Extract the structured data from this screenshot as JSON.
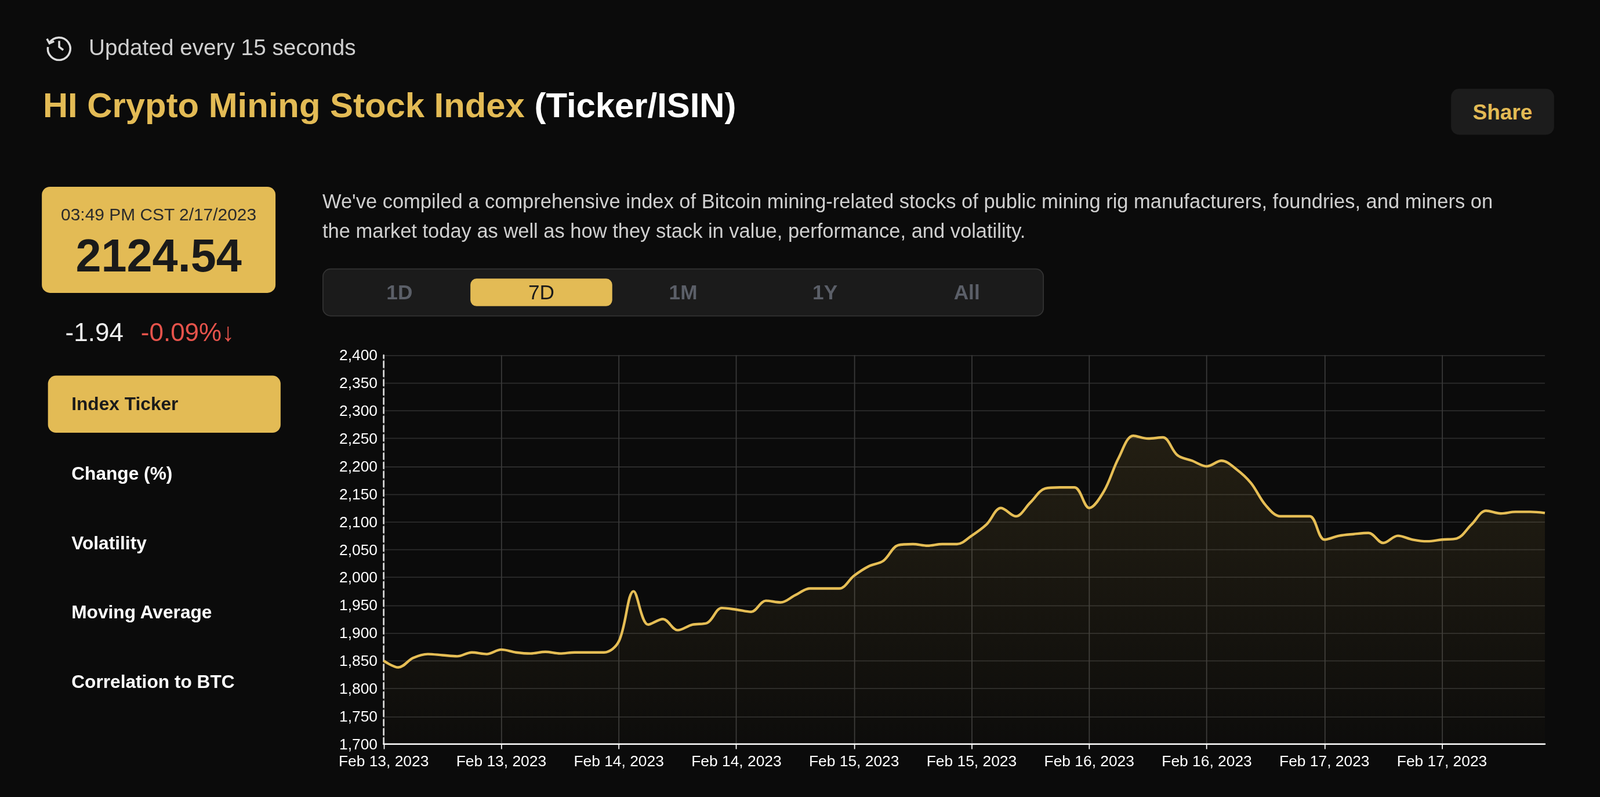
{
  "header": {
    "update_note": "Updated every 15 seconds",
    "title": "HI Crypto Mining Stock Index",
    "title_suffix": "(Ticker/ISIN)",
    "share_button": "Share"
  },
  "quote": {
    "timestamp": "03:49 PM CST 2/17/2023",
    "value": "2124.54",
    "change": "-1.94",
    "change_percent": "-0.09%↓"
  },
  "menu": {
    "items": [
      "Index Ticker",
      "Change (%)",
      "Volatility",
      "Moving Average",
      "Correlation to BTC"
    ],
    "selected": "Index Ticker"
  },
  "description": "We've compiled a comprehensive index of Bitcoin mining-related stocks of public mining rig manufacturers, foundries, and miners on the market today as well as how they stack in value, performance, and volatility.",
  "range_tabs": {
    "items": [
      "1D",
      "7D",
      "1M",
      "1Y",
      "All"
    ],
    "selected": "7D"
  },
  "chart_data": {
    "type": "line",
    "color": "#e6be55",
    "grid": true,
    "x": [
      "Feb 13, 2023",
      null,
      null,
      null,
      null,
      null,
      null,
      null,
      "Feb 13, 2023",
      null,
      null,
      null,
      null,
      null,
      null,
      null,
      "Feb 14, 2023",
      null,
      null,
      null,
      null,
      null,
      null,
      null,
      "Feb 14, 2023",
      null,
      null,
      null,
      null,
      null,
      null,
      null,
      "Feb 15, 2023",
      null,
      null,
      null,
      null,
      null,
      null,
      null,
      "Feb 15, 2023",
      null,
      null,
      null,
      null,
      null,
      null,
      null,
      "Feb 16, 2023",
      null,
      null,
      null,
      null,
      null,
      null,
      null,
      "Feb 16, 2023",
      null,
      null,
      null,
      null,
      null,
      null,
      null,
      "Feb 17, 2023",
      null,
      null,
      null,
      null,
      null,
      null,
      null,
      "Feb 17, 2023",
      null,
      null,
      null,
      null,
      null,
      null,
      null
    ],
    "values": [
      1850,
      1838,
      1855,
      1862,
      1860,
      1858,
      1865,
      1862,
      1870,
      1865,
      1863,
      1866,
      1863,
      1865,
      1865,
      1865,
      1885,
      1975,
      1915,
      1925,
      1905,
      1915,
      1918,
      1945,
      1942,
      1938,
      1958,
      1955,
      1968,
      1980,
      1980,
      1980,
      2003,
      2020,
      2030,
      2058,
      2060,
      2057,
      2060,
      2060,
      2075,
      2095,
      2125,
      2110,
      2135,
      2160,
      2162,
      2162,
      2125,
      2155,
      2215,
      2255,
      2250,
      2252,
      2220,
      2210,
      2200,
      2210,
      2195,
      2170,
      2130,
      2110,
      2110,
      2110,
      2068,
      2075,
      2078,
      2080,
      2062,
      2075,
      2068,
      2065,
      2068,
      2070,
      2095,
      2120,
      2115,
      2118,
      2118,
      2116
    ],
    "ylim": [
      1700,
      2400
    ],
    "yticks": [
      {
        "value": 1700,
        "label": "1,700"
      },
      {
        "value": 1750,
        "label": "1,750"
      },
      {
        "value": 1800,
        "label": "1,800"
      },
      {
        "value": 1850,
        "label": "1,850"
      },
      {
        "value": 1900,
        "label": "1,900"
      },
      {
        "value": 1950,
        "label": "1,950"
      },
      {
        "value": 2000,
        "label": "2,000"
      },
      {
        "value": 2050,
        "label": "2,050"
      },
      {
        "value": 2100,
        "label": "2,100"
      },
      {
        "value": 2150,
        "label": "2,150"
      },
      {
        "value": 2200,
        "label": "2,200"
      },
      {
        "value": 2250,
        "label": "2,250"
      },
      {
        "value": 2300,
        "label": "2,300"
      },
      {
        "value": 2350,
        "label": "2,350"
      },
      {
        "value": 2400,
        "label": "2,400"
      }
    ]
  }
}
